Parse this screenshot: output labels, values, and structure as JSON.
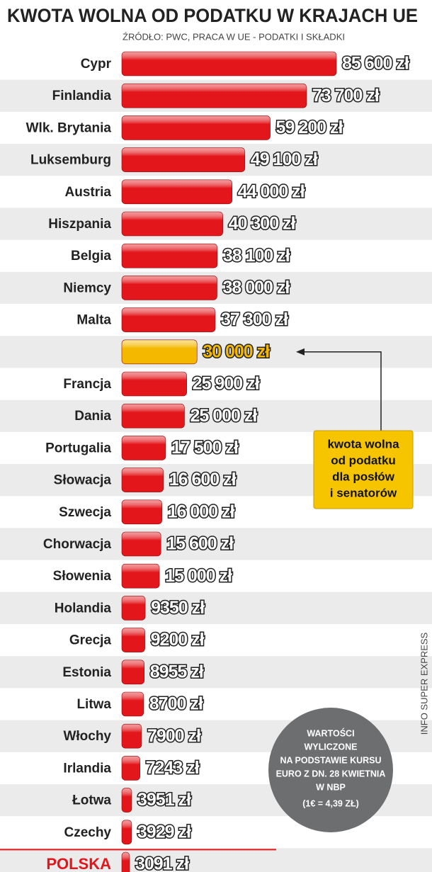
{
  "chart_data": {
    "type": "bar",
    "orientation": "horizontal",
    "title": "KWOTA WOLNA OD PODATKU W KRAJACH UE",
    "subtitle": "ŹRÓDŁO: PWC, PRACA W UE - PODATKI I SKŁADKI",
    "categories": [
      "Cypr",
      "Finlandia",
      "Wlk. Brytania",
      "Luksemburg",
      "Austria",
      "Hiszpania",
      "Belgia",
      "Niemcy",
      "Malta",
      null,
      "Francja",
      "Dania",
      "Portugalia",
      "Słowacja",
      "Szwecja",
      "Chorwacja",
      "Słowenia",
      "Holandia",
      "Grecja",
      "Estonia",
      "Litwa",
      "Włochy",
      "Irlandia",
      "Łotwa",
      "Czechy",
      "POLSKA"
    ],
    "values": [
      85600,
      73700,
      59200,
      49100,
      44000,
      40300,
      38100,
      38000,
      37300,
      30000,
      25900,
      25000,
      17500,
      16600,
      16000,
      15600,
      15000,
      9350,
      9200,
      8955,
      8700,
      7900,
      7243,
      3951,
      3929,
      3091
    ],
    "value_labels": [
      "85 600 zł",
      "73 700 zł",
      "59 200 zł",
      "49 100 zł",
      "44 000 zł",
      "40 300 zł",
      "38 100 zł",
      "38 000 zł",
      "37 300 zł",
      "30 000 zł",
      "25 900 zł",
      "25 000 zł",
      "17 500 zł",
      "16 600 zł",
      "16 000 zł",
      "15 600 zł",
      "15 000 zł",
      "9350 zł",
      "9200 zł",
      "8955 zł",
      "8700 zł",
      "7900 zł",
      "7243 zł",
      "3951 zł",
      "3929 zł",
      "3091 zł"
    ],
    "colors": [
      "#e3161b",
      "#e3161b",
      "#e3161b",
      "#e3161b",
      "#e3161b",
      "#e3161b",
      "#e3161b",
      "#e3161b",
      "#e3161b",
      "#f5b800",
      "#e3161b",
      "#e3161b",
      "#e3161b",
      "#e3161b",
      "#e3161b",
      "#e3161b",
      "#e3161b",
      "#e3161b",
      "#e3161b",
      "#e3161b",
      "#e3161b",
      "#e3161b",
      "#e3161b",
      "#e3161b",
      "#e3161b",
      "#e3161b"
    ],
    "annotation": [
      "kwota wolna",
      "od podatku",
      "dla posłów",
      "i senatorów"
    ],
    "note": [
      "WARTOŚCI",
      "WYLICZONE",
      "NA PODSTAWIE KURSU",
      "EURO Z DN. 28 KWIETNIA",
      "W NBP",
      "(1€ = 4,39 ZŁ)"
    ],
    "source": "INFO SUPER EXPRESS"
  }
}
